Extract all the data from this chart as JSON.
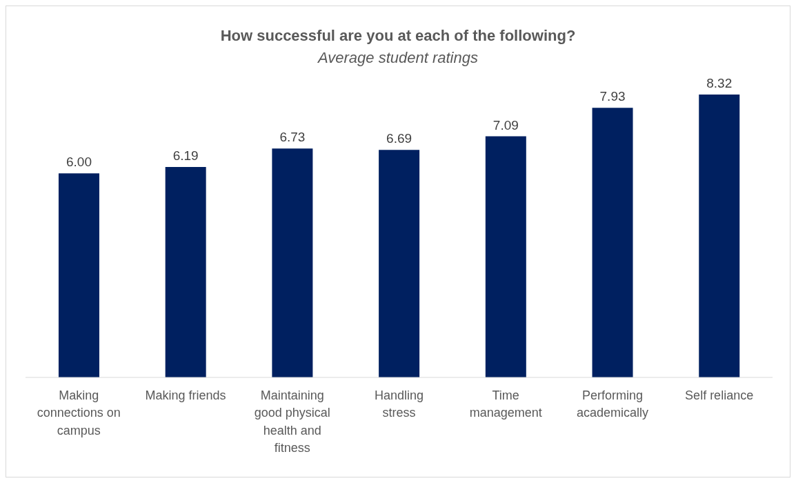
{
  "chart_data": {
    "type": "bar",
    "title": "How successful are you at each of the following?",
    "subtitle": "Average student ratings",
    "categories": [
      "Making connections on campus",
      "Making friends",
      "Maintaining good physical health and fitness",
      "Handling stress",
      "Time management",
      "Performing academically",
      "Self reliance"
    ],
    "values": [
      6.0,
      6.19,
      6.73,
      6.69,
      7.09,
      7.93,
      8.32
    ],
    "value_labels": [
      "6.00",
      "6.19",
      "6.73",
      "6.69",
      "7.09",
      "7.93",
      "8.32"
    ],
    "color": "#002060",
    "grid": false,
    "legend": false
  }
}
